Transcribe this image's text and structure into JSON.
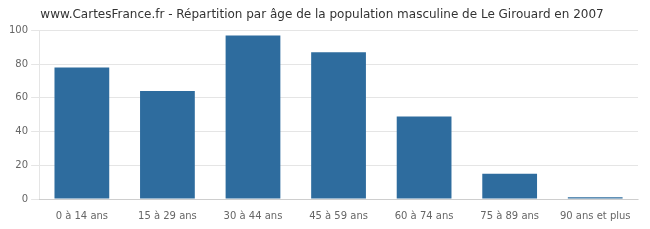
{
  "chart_data": {
    "type": "bar",
    "title": "www.CartesFrance.fr - Répartition par âge de la population masculine de Le Girouard en 2007",
    "categories": [
      "0 à 14 ans",
      "15 à 29 ans",
      "30 à 44 ans",
      "45 à 59 ans",
      "60 à 74 ans",
      "75 à 89 ans",
      "90 ans et plus"
    ],
    "values": [
      78,
      64,
      97,
      87,
      49,
      15,
      1
    ],
    "color": "#2e6c9e",
    "ylim": [
      0,
      100
    ],
    "yticks": [
      0,
      20,
      40,
      60,
      80,
      100
    ],
    "grid": true
  }
}
